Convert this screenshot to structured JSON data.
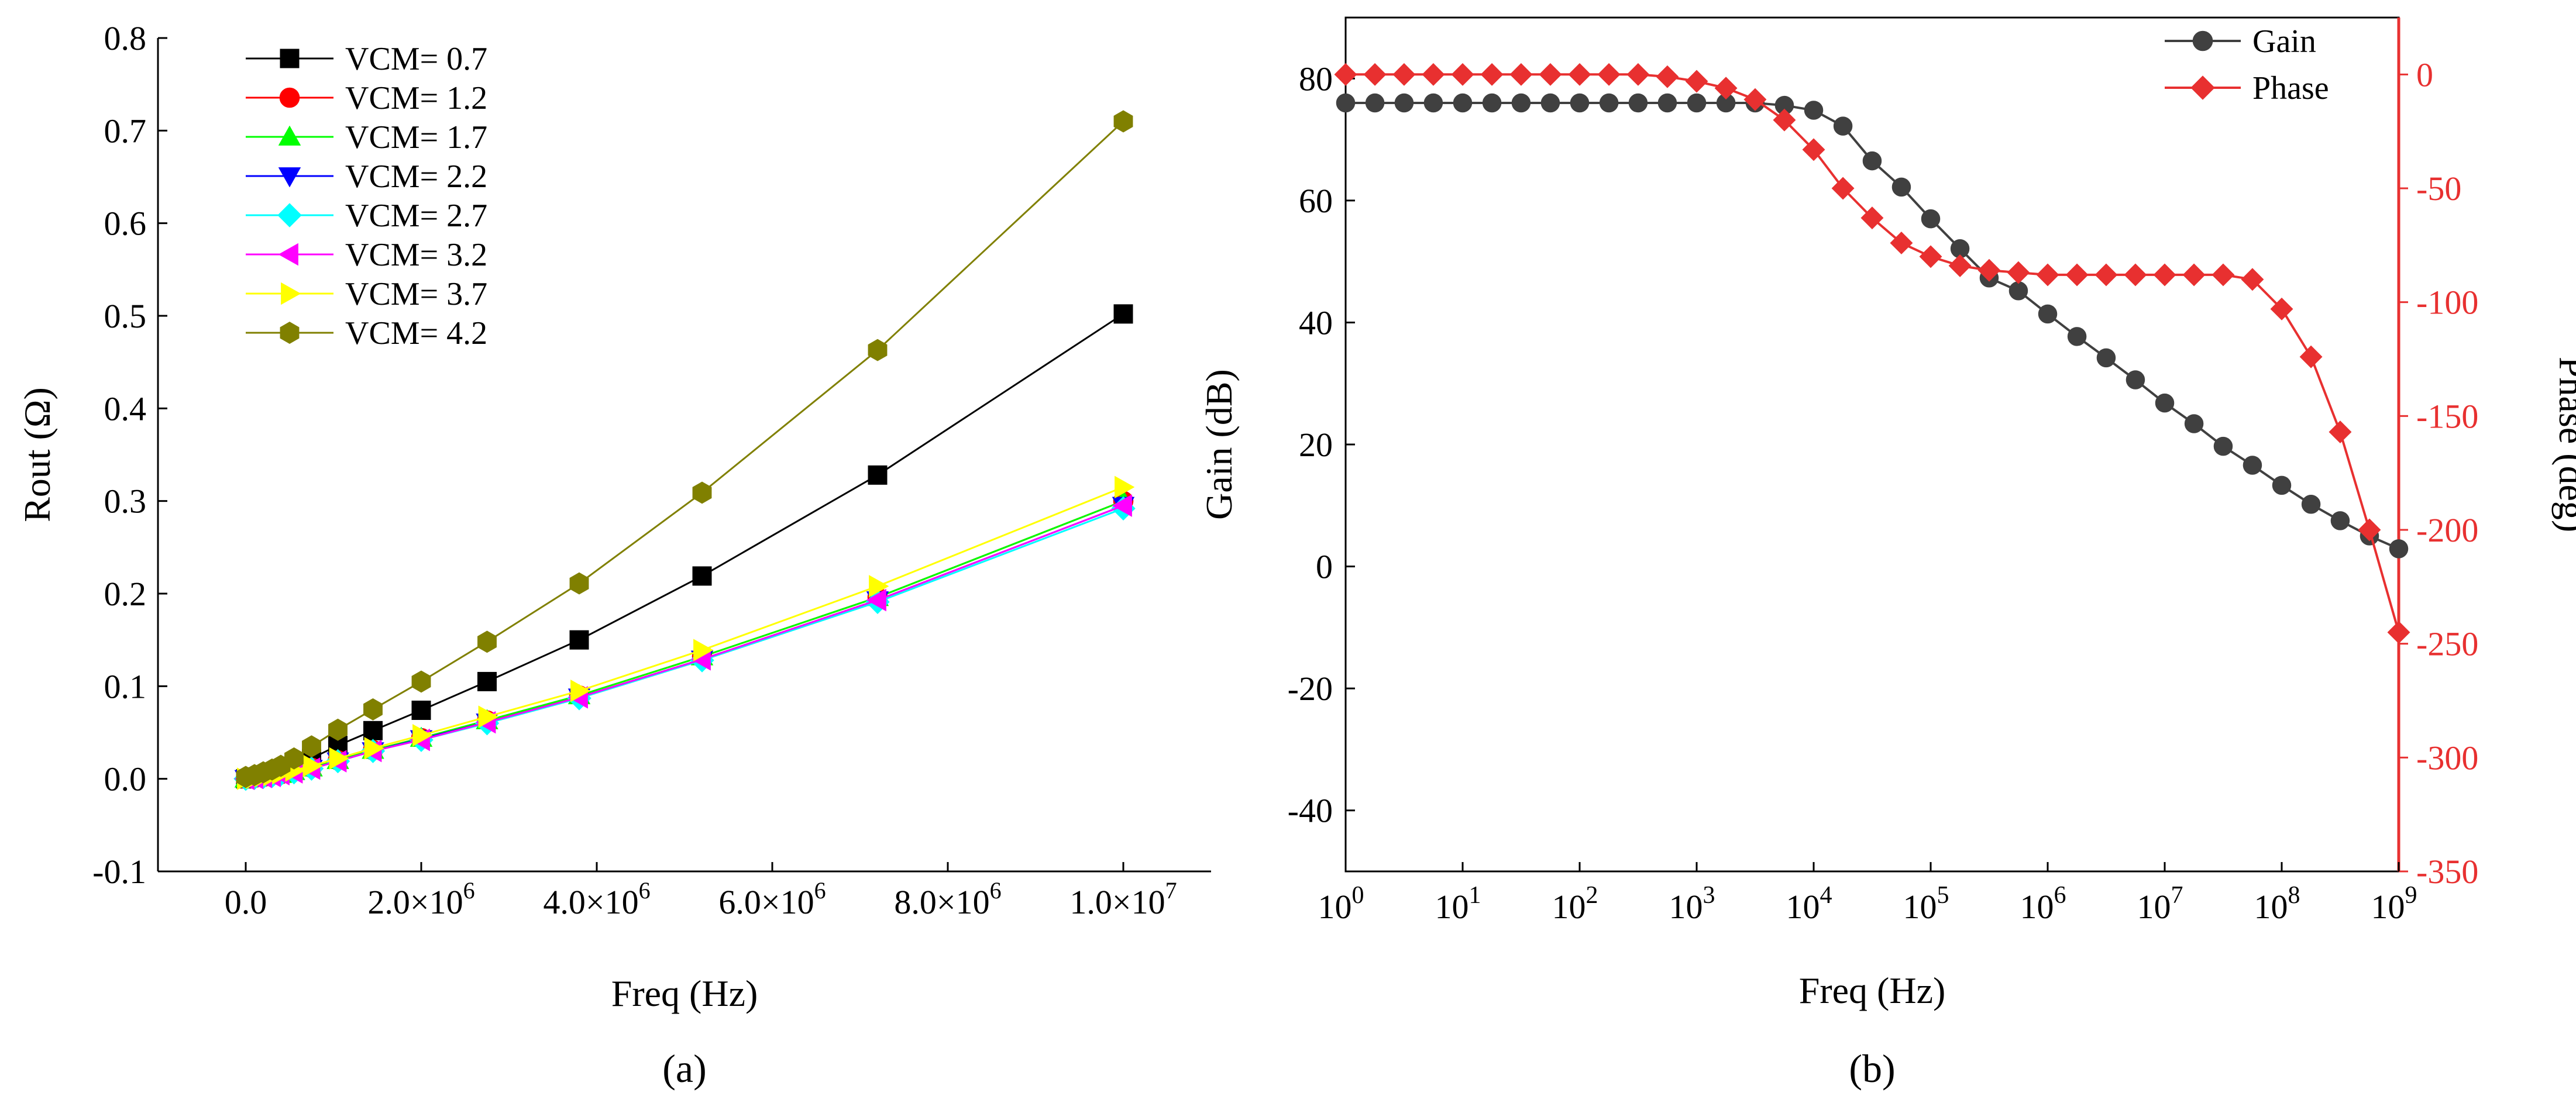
{
  "chart_data": [
    {
      "panel": "a",
      "panel_label": "(a)",
      "type": "line",
      "xlabel": "Freq (Hz)",
      "ylabel": "Rout (Ω)",
      "xlim": [
        -1000000.0,
        11000000.0
      ],
      "ylim": [
        -0.1,
        0.8
      ],
      "x_ticks": [
        0,
        2000000.0,
        4000000.0,
        6000000.0,
        8000000.0,
        10000000.0
      ],
      "x_tick_labels": [
        "0.0",
        "2.0×10",
        "4.0×10",
        "6.0×10",
        "8.0×10",
        "1.0×10"
      ],
      "x_tick_exponents": [
        "",
        "6",
        "6",
        "6",
        "6",
        "7"
      ],
      "y_ticks": [
        -0.1,
        0.0,
        0.1,
        0.2,
        0.3,
        0.4,
        0.5,
        0.6,
        0.7,
        0.8
      ],
      "y_tick_labels": [
        "-0.1",
        "0.0",
        "0.1",
        "0.2",
        "0.3",
        "0.4",
        "0.5",
        "0.6",
        "0.7",
        "0.8"
      ],
      "legend_position": "top-left",
      "x": [
        0,
        100000,
        200000,
        300000,
        400000,
        550000,
        750000,
        1050000,
        1450000,
        2000000,
        2750000,
        3800000,
        5200000,
        7200000,
        10000000
      ],
      "series": [
        {
          "name": "VCM= 0.7",
          "color": "#000000",
          "marker": "square",
          "values": [
            0.0,
            0.002,
            0.004,
            0.007,
            0.01,
            0.014,
            0.022,
            0.036,
            0.052,
            0.074,
            0.105,
            0.15,
            0.219,
            0.328,
            0.502
          ]
        },
        {
          "name": "VCM= 1.2",
          "color": "#ff0000",
          "marker": "circle",
          "values": [
            0.0,
            0.001,
            0.002,
            0.004,
            0.005,
            0.008,
            0.012,
            0.02,
            0.031,
            0.044,
            0.063,
            0.09,
            0.132,
            0.196,
            0.3
          ]
        },
        {
          "name": "VCM= 1.7",
          "color": "#00ff00",
          "marker": "triangle-up",
          "values": [
            0.0,
            0.001,
            0.002,
            0.004,
            0.005,
            0.008,
            0.012,
            0.02,
            0.031,
            0.044,
            0.063,
            0.09,
            0.132,
            0.196,
            0.3
          ]
        },
        {
          "name": "VCM= 2.2",
          "color": "#0000ff",
          "marker": "triangle-down",
          "values": [
            0.0,
            0.001,
            0.002,
            0.003,
            0.005,
            0.007,
            0.011,
            0.019,
            0.03,
            0.043,
            0.061,
            0.088,
            0.129,
            0.193,
            0.295
          ]
        },
        {
          "name": "VCM= 2.7",
          "color": "#00ffff",
          "marker": "diamond",
          "values": [
            0.0,
            0.001,
            0.002,
            0.003,
            0.005,
            0.007,
            0.011,
            0.019,
            0.03,
            0.042,
            0.06,
            0.087,
            0.128,
            0.191,
            0.292
          ]
        },
        {
          "name": "VCM= 3.2",
          "color": "#ff00ff",
          "marker": "triangle-left",
          "values": [
            0.0,
            0.001,
            0.002,
            0.003,
            0.005,
            0.007,
            0.011,
            0.019,
            0.03,
            0.042,
            0.061,
            0.088,
            0.129,
            0.193,
            0.295
          ]
        },
        {
          "name": "VCM= 3.7",
          "color": "#ffff00",
          "marker": "triangle-right",
          "values": [
            0.0,
            0.001,
            0.003,
            0.004,
            0.006,
            0.009,
            0.014,
            0.022,
            0.033,
            0.047,
            0.067,
            0.095,
            0.139,
            0.208,
            0.315
          ]
        },
        {
          "name": "VCM= 4.2",
          "color": "#808000",
          "marker": "hexagon",
          "values": [
            0.002,
            0.004,
            0.007,
            0.01,
            0.014,
            0.022,
            0.035,
            0.053,
            0.075,
            0.105,
            0.148,
            0.211,
            0.309,
            0.463,
            0.71
          ]
        }
      ]
    },
    {
      "panel": "b",
      "panel_label": "(b)",
      "type": "line",
      "xlabel": "Freq (Hz)",
      "ylabel": "Gain (dB)",
      "y2label": "Phase (deg)",
      "x_scale": "log",
      "xlim": [
        1,
        1000000000
      ],
      "ylim": [
        -50,
        90
      ],
      "y2lim": [
        -350,
        25
      ],
      "x_ticks": [
        1,
        10,
        100,
        1000,
        10000,
        100000,
        1000000,
        10000000,
        100000000,
        1000000000
      ],
      "x_tick_exponents": [
        "0",
        "1",
        "2",
        "3",
        "4",
        "5",
        "6",
        "7",
        "8",
        "9"
      ],
      "x_tick_base": "10",
      "y_ticks": [
        -40,
        -20,
        0,
        20,
        40,
        60,
        80
      ],
      "y_tick_labels": [
        "-40",
        "-20",
        "0",
        "20",
        "40",
        "60",
        "80"
      ],
      "y2_ticks": [
        0,
        -50,
        -100,
        -150,
        -200,
        -250,
        -300,
        -350
      ],
      "y2_tick_labels": [
        "0",
        "-50",
        "-100",
        "-150",
        "-200",
        "-250",
        "-300",
        "-350"
      ],
      "legend_position": "top-right",
      "series": [
        {
          "name": "Gain",
          "color": "#404040",
          "marker": "circle",
          "axis": "left",
          "x": [
            1,
            1.78,
            3.16,
            5.62,
            10,
            17.8,
            31.6,
            56.2,
            100,
            178,
            316,
            562,
            1000,
            1780,
            3160,
            5620,
            10000,
            17800,
            31600,
            56200,
            100000,
            178000,
            316000,
            562000,
            1000000,
            1780000,
            3160000,
            5620000,
            10000000,
            17800000,
            31600000,
            56200000,
            100000000,
            178000000,
            316000000,
            562000000,
            1000000000
          ],
          "values": [
            76,
            76,
            76,
            76,
            76,
            76,
            76,
            76,
            76,
            76,
            76,
            76,
            76,
            76,
            76,
            75.6,
            74.8,
            72.2,
            66.5,
            62.2,
            57,
            52.1,
            47.3,
            45.2,
            41.4,
            37.7,
            34.2,
            30.6,
            26.8,
            23.4,
            19.7,
            16.6,
            13.3,
            10.2,
            7.5,
            5.0,
            2.9
          ]
        },
        {
          "name": "Phase",
          "color": "#e83030",
          "marker": "diamond",
          "axis": "right",
          "x": [
            1,
            1.78,
            3.16,
            5.62,
            10,
            17.8,
            31.6,
            56.2,
            100,
            178,
            316,
            562,
            1000,
            1780,
            3160,
            5620,
            10000,
            17800,
            31600,
            56200,
            100000,
            178000,
            316000,
            562000,
            1000000,
            1780000,
            3160000,
            5620000,
            10000000,
            17800000,
            31600000,
            56200000,
            100000000,
            178000000,
            316000000,
            562000000,
            1000000000
          ],
          "values": [
            0,
            0,
            0,
            0,
            0,
            0,
            0,
            0,
            0,
            0,
            0,
            -1,
            -3,
            -6,
            -11,
            -20,
            -33,
            -50,
            -63,
            -74,
            -80,
            -84,
            -86,
            -87,
            -88,
            -88,
            -88,
            -88,
            -88,
            -88,
            -88,
            -90,
            -103,
            -124,
            -157,
            -200,
            -245
          ]
        }
      ]
    }
  ]
}
